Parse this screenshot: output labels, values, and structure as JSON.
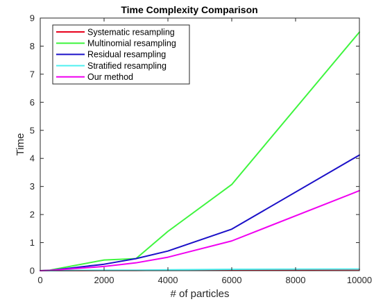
{
  "chart_data": {
    "type": "line",
    "title": "Time Complexity Comparison",
    "xlabel": "# of particles",
    "ylabel": "Time",
    "xlim": [
      0,
      10000
    ],
    "ylim": [
      0,
      9
    ],
    "xticks": [
      0,
      2000,
      4000,
      6000,
      8000,
      10000
    ],
    "yticks": [
      0,
      1,
      2,
      3,
      4,
      5,
      6,
      7,
      8,
      9
    ],
    "grid": false,
    "legend_position": "top-left",
    "series": [
      {
        "name": "Systematic resampling",
        "color": "#e8001c",
        "x": [
          0,
          300,
          2000,
          3000,
          4000,
          6000,
          10000
        ],
        "y": [
          0,
          0,
          0.01,
          0.01,
          0.02,
          0.03,
          0.04
        ]
      },
      {
        "name": "Multinomial resampling",
        "color": "#3ef53e",
        "x": [
          0,
          300,
          2000,
          3000,
          4000,
          6000,
          10000
        ],
        "y": [
          0,
          0.02,
          0.38,
          0.43,
          1.4,
          3.07,
          8.5
        ]
      },
      {
        "name": "Residual resampling",
        "color": "#1b10c8",
        "x": [
          0,
          300,
          2000,
          3000,
          4000,
          6000,
          10000
        ],
        "y": [
          0,
          0.01,
          0.23,
          0.43,
          0.7,
          1.48,
          4.12
        ]
      },
      {
        "name": "Stratified resampling",
        "color": "#4df0f0",
        "x": [
          0,
          300,
          2000,
          3000,
          4000,
          6000,
          10000
        ],
        "y": [
          0,
          0,
          0.02,
          0.02,
          0.03,
          0.05,
          0.06
        ]
      },
      {
        "name": "Our method",
        "color": "#f000f0",
        "x": [
          0,
          300,
          2000,
          3000,
          4000,
          6000,
          10000
        ],
        "y": [
          0,
          0.01,
          0.15,
          0.28,
          0.48,
          1.06,
          2.85
        ]
      }
    ]
  }
}
